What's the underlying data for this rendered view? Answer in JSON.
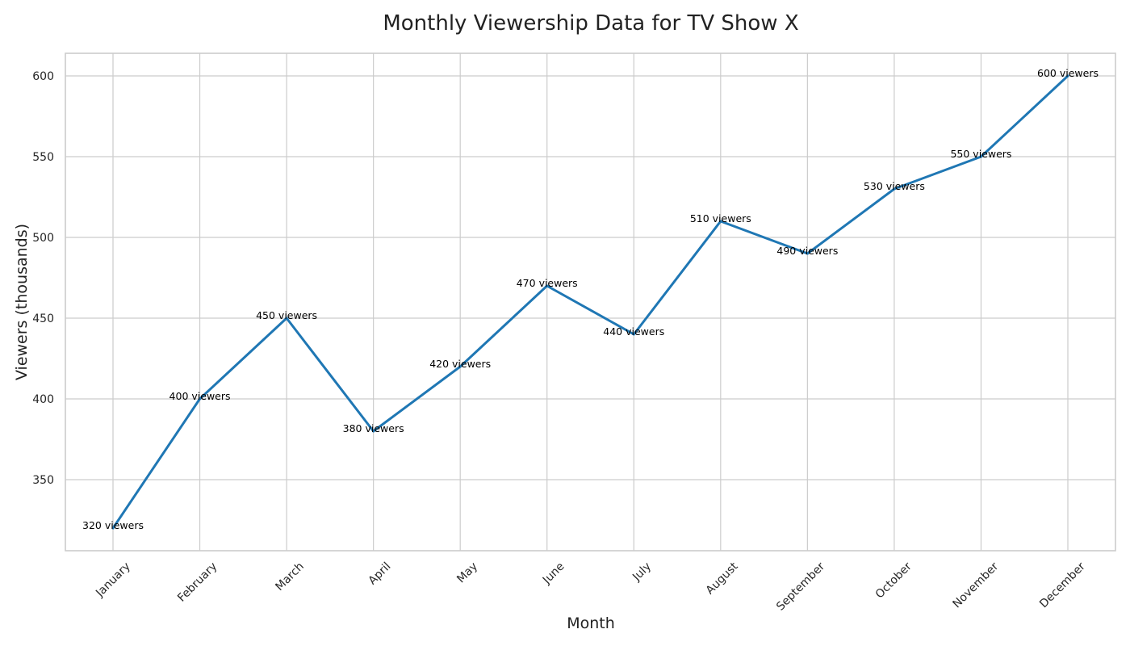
{
  "chart_data": {
    "type": "line",
    "title": "Monthly Viewership Data for TV Show X",
    "xlabel": "Month",
    "ylabel": "Viewers (thousands)",
    "categories": [
      "January",
      "February",
      "March",
      "April",
      "May",
      "June",
      "July",
      "August",
      "September",
      "October",
      "November",
      "December"
    ],
    "series": [
      {
        "values": [
          320,
          400,
          450,
          380,
          420,
          470,
          440,
          510,
          490,
          530,
          550,
          600
        ],
        "color": "#1f77b4"
      }
    ],
    "data_labels": [
      "320 viewers",
      "400 viewers",
      "450 viewers",
      "380 viewers",
      "420 viewers",
      "470 viewers",
      "440 viewers",
      "510 viewers",
      "490 viewers",
      "530 viewers",
      "550 viewers",
      "600 viewers"
    ],
    "yticks": [
      350,
      400,
      450,
      500,
      550,
      600
    ],
    "ylim": [
      306,
      614
    ],
    "grid": true,
    "background": "#ffffff",
    "grid_color": "#cccccc"
  }
}
